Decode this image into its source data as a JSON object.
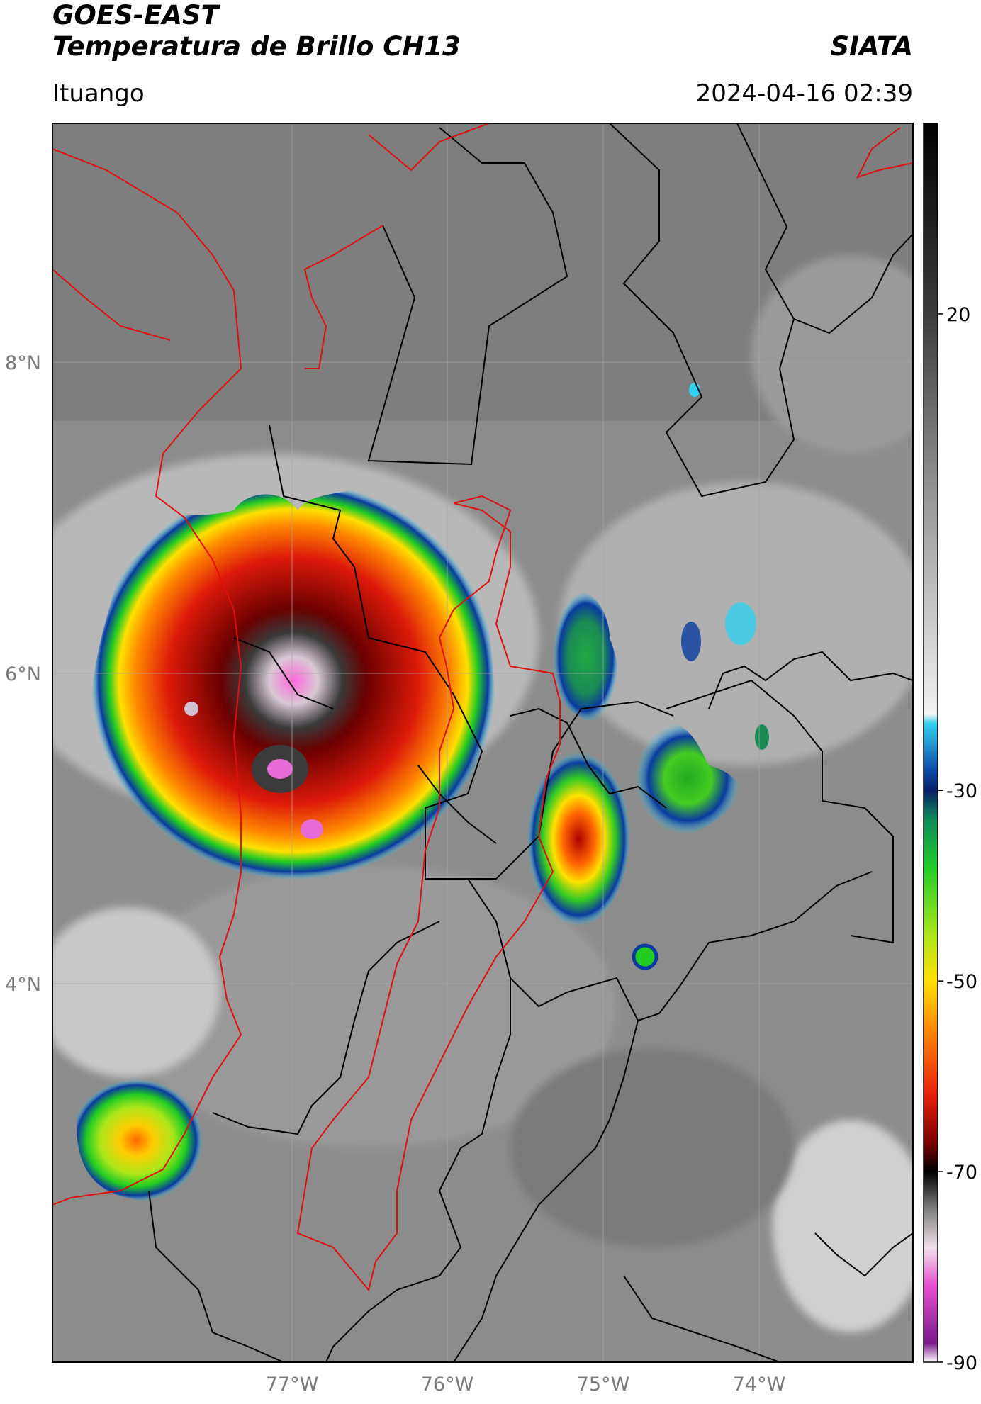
{
  "header": {
    "satellite": "GOES-EAST",
    "product": "Temperatura de Brillo CH13",
    "organization": "SIATA",
    "region": "Ituango",
    "timestamp": "2024-04-16 02:39"
  },
  "map": {
    "lat_labels": [
      "8°N",
      "6°N",
      "4°N"
    ],
    "lon_labels": [
      "77°W",
      "76°W",
      "75°W",
      "74°W"
    ]
  },
  "colorbar": {
    "tick_labels": [
      "20",
      "-30",
      "-50",
      "-70",
      "-90"
    ],
    "stops": [
      {
        "value": 40,
        "color": "#000000"
      },
      {
        "value": 20,
        "color": "#3c3c3c"
      },
      {
        "value": 0,
        "color": "#9a9a9a"
      },
      {
        "value": -22,
        "color": "#f2f2f2"
      },
      {
        "value": -23,
        "color": "#33d1f0"
      },
      {
        "value": -28,
        "color": "#0b48a6"
      },
      {
        "value": -30,
        "color": "#0a1f66"
      },
      {
        "value": -33,
        "color": "#0c8a5a"
      },
      {
        "value": -38,
        "color": "#1fcc2a"
      },
      {
        "value": -45,
        "color": "#a8e61a"
      },
      {
        "value": -50,
        "color": "#ffe000"
      },
      {
        "value": -55,
        "color": "#ff8a00"
      },
      {
        "value": -62,
        "color": "#e81e0c"
      },
      {
        "value": -67,
        "color": "#7a0000"
      },
      {
        "value": -70,
        "color": "#000000"
      },
      {
        "value": -74,
        "color": "#808080"
      },
      {
        "value": -78,
        "color": "#f0e0ea"
      },
      {
        "value": -82,
        "color": "#e84fd0"
      },
      {
        "value": -88,
        "color": "#7a1a8a"
      },
      {
        "value": -90,
        "color": "#ffffff"
      }
    ],
    "min": -90,
    "max": 40
  }
}
